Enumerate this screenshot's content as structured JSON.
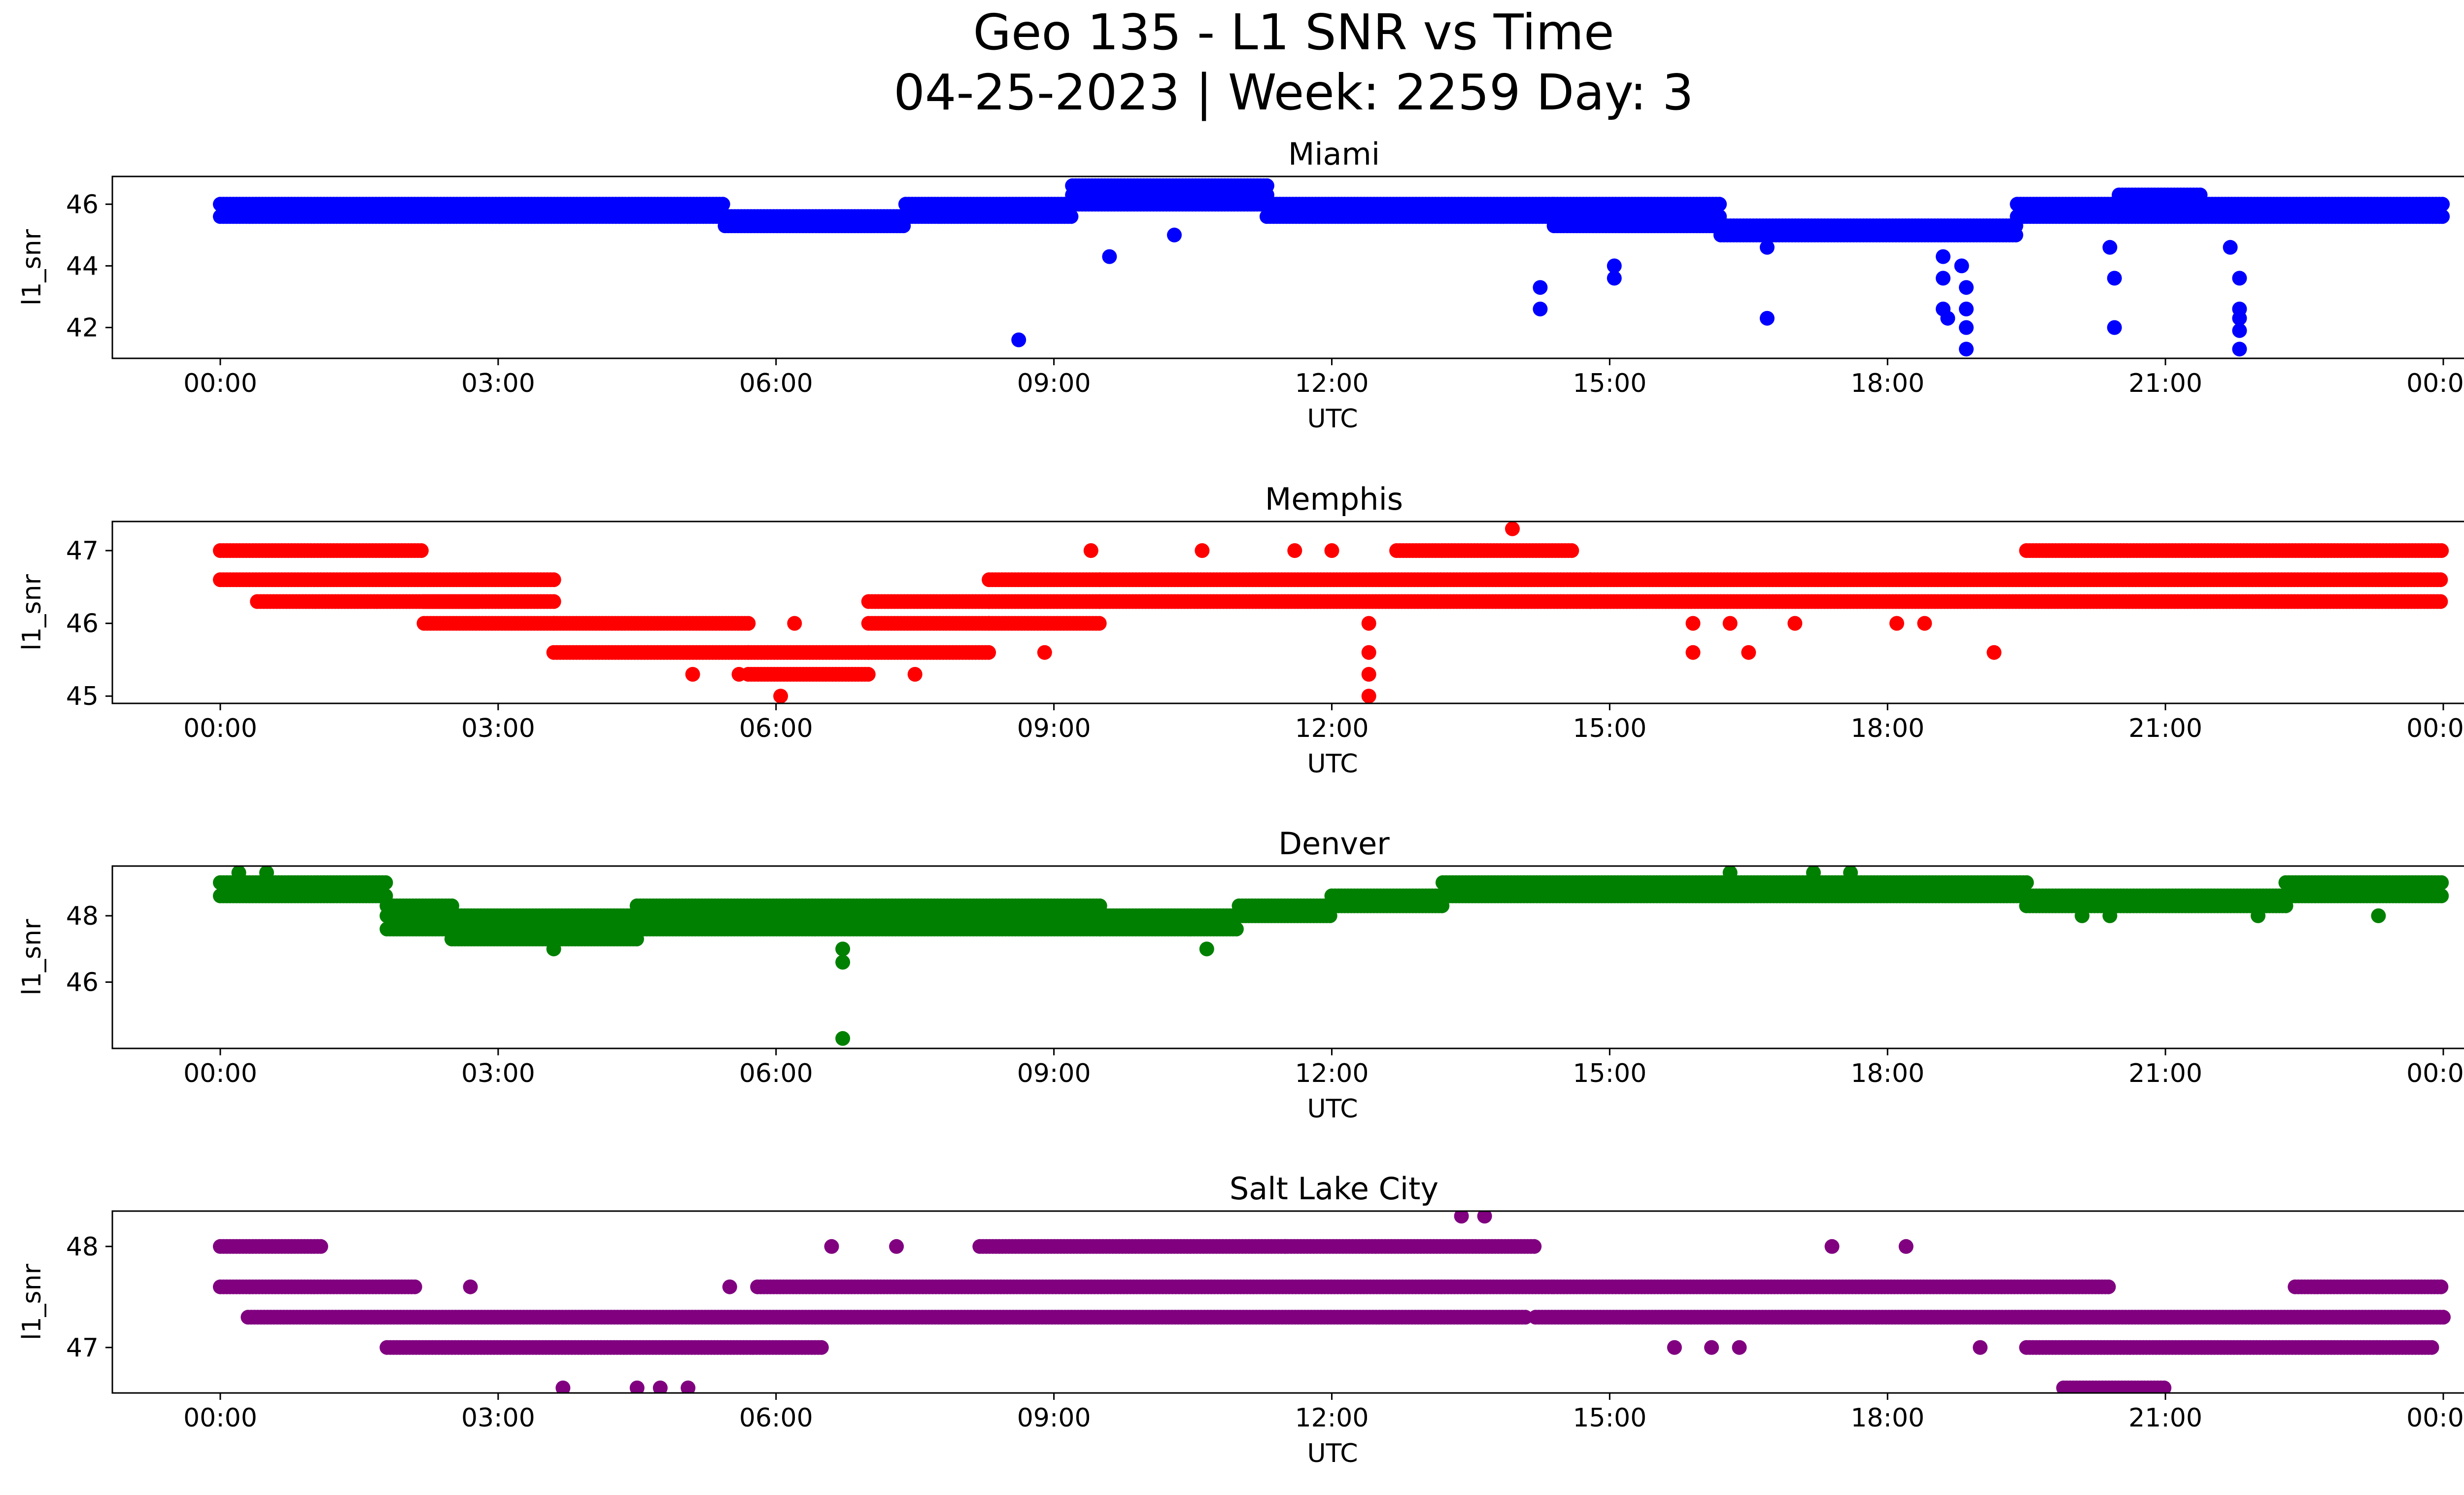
{
  "figure": {
    "title_line1": "Geo 135 - L1 SNR vs Time",
    "title_line2": "04-25-2023 | Week: 2259 Day: 3"
  },
  "chart_data": [
    {
      "type": "scatter",
      "title": "Miami",
      "xlabel": "UTC",
      "ylabel": "l1_snr",
      "color": "#0000ff",
      "xlim": [
        "00:00",
        "24:00"
      ],
      "xticks": [
        "00:00",
        "03:00",
        "06:00",
        "09:00",
        "12:00",
        "15:00",
        "18:00",
        "21:00",
        "00:00"
      ],
      "ylim": [
        41.0,
        46.9
      ],
      "yticks": [
        42,
        44,
        46
      ],
      "bands": [
        {
          "x": [
            0.0,
            5.45
          ],
          "ys": [
            45.6,
            46.0
          ]
        },
        {
          "x": [
            5.45,
            7.4
          ],
          "ys": [
            45.3,
            45.6
          ]
        },
        {
          "x": [
            7.4,
            9.2
          ],
          "ys": [
            45.6,
            46.0
          ]
        },
        {
          "x": [
            9.2,
            11.3
          ],
          "ys": [
            46.0,
            46.3,
            46.6
          ]
        },
        {
          "x": [
            11.3,
            14.4
          ],
          "ys": [
            45.6,
            46.0
          ]
        },
        {
          "x": [
            14.4,
            16.2
          ],
          "ys": [
            45.3,
            45.6,
            46.0
          ]
        },
        {
          "x": [
            16.2,
            19.4
          ],
          "ys": [
            45.0,
            45.3
          ]
        },
        {
          "x": [
            19.4,
            20.5
          ],
          "ys": [
            45.6,
            46.0
          ]
        },
        {
          "x": [
            20.5,
            21.4
          ],
          "ys": [
            45.6,
            46.0,
            46.3
          ]
        },
        {
          "x": [
            21.4,
            24.0
          ],
          "ys": [
            45.6,
            46.0
          ]
        }
      ],
      "outliers": [
        [
          8.62,
          41.6
        ],
        [
          9.6,
          44.3
        ],
        [
          10.3,
          45.0
        ],
        [
          14.25,
          43.3
        ],
        [
          14.25,
          42.6
        ],
        [
          15.05,
          44.0
        ],
        [
          15.05,
          43.6
        ],
        [
          16.7,
          42.3
        ],
        [
          16.7,
          44.6
        ],
        [
          18.6,
          43.6
        ],
        [
          18.6,
          42.6
        ],
        [
          18.65,
          42.3
        ],
        [
          18.6,
          44.3
        ],
        [
          18.85,
          43.3
        ],
        [
          18.85,
          42.6
        ],
        [
          18.85,
          42.0
        ],
        [
          18.85,
          41.3
        ],
        [
          18.8,
          44.0
        ],
        [
          20.45,
          43.6
        ],
        [
          20.45,
          42.0
        ],
        [
          20.4,
          44.6
        ],
        [
          21.8,
          43.6
        ],
        [
          21.8,
          42.6
        ],
        [
          21.8,
          42.3
        ],
        [
          21.8,
          41.9
        ],
        [
          21.8,
          41.3
        ],
        [
          21.7,
          44.6
        ]
      ]
    },
    {
      "type": "scatter",
      "title": "Memphis",
      "xlabel": "UTC",
      "ylabel": "l1_snr",
      "color": "#ff0000",
      "xlim": [
        "00:00",
        "24:00"
      ],
      "xticks": [
        "00:00",
        "03:00",
        "06:00",
        "09:00",
        "12:00",
        "15:00",
        "18:00",
        "21:00",
        "00:00"
      ],
      "ylim": [
        44.9,
        47.4
      ],
      "yticks": [
        45,
        46,
        47
      ],
      "bands": [
        {
          "x": [
            0.0,
            2.2
          ],
          "ys": [
            46.6,
            47.0
          ]
        },
        {
          "x": [
            0.4,
            2.8
          ],
          "ys": [
            46.3
          ]
        },
        {
          "x": [
            2.2,
            3.6
          ],
          "ys": [
            46.0,
            46.3,
            46.6
          ]
        },
        {
          "x": [
            3.6,
            5.7
          ],
          "ys": [
            45.6,
            46.0
          ]
        },
        {
          "x": [
            5.7,
            7.0
          ],
          "ys": [
            45.3,
            45.6
          ]
        },
        {
          "x": [
            7.0,
            8.3
          ],
          "ys": [
            45.6,
            46.0,
            46.3
          ]
        },
        {
          "x": [
            8.3,
            9.5
          ],
          "ys": [
            46.0,
            46.3,
            46.6
          ]
        },
        {
          "x": [
            9.5,
            14.8
          ],
          "ys": [
            46.3,
            46.6
          ]
        },
        {
          "x": [
            12.7,
            14.6
          ],
          "ys": [
            47.0
          ]
        },
        {
          "x": [
            14.8,
            24.0
          ],
          "ys": [
            46.3,
            46.6
          ]
        },
        {
          "x": [
            19.5,
            24.0
          ],
          "ys": [
            47.0
          ]
        }
      ],
      "outliers": [
        [
          6.05,
          45.0
        ],
        [
          12.4,
          45.0
        ],
        [
          12.4,
          45.3
        ],
        [
          12.4,
          45.6
        ],
        [
          12.4,
          46.0
        ],
        [
          13.95,
          47.3
        ],
        [
          15.9,
          45.6
        ],
        [
          16.5,
          45.6
        ],
        [
          15.9,
          46.0
        ],
        [
          16.3,
          46.0
        ],
        [
          17.0,
          46.0
        ],
        [
          18.1,
          46.0
        ],
        [
          18.4,
          46.0
        ],
        [
          19.15,
          45.6
        ],
        [
          8.9,
          45.6
        ],
        [
          5.1,
          45.3
        ],
        [
          5.6,
          45.3
        ],
        [
          6.2,
          46.0
        ],
        [
          10.6,
          47.0
        ],
        [
          11.6,
          47.0
        ],
        [
          12.0,
          47.0
        ],
        [
          9.4,
          47.0
        ],
        [
          7.5,
          45.3
        ]
      ]
    },
    {
      "type": "scatter",
      "title": "Denver",
      "xlabel": "UTC",
      "ylabel": "l1_snr",
      "color": "#008000",
      "xlim": [
        "00:00",
        "24:00"
      ],
      "xticks": [
        "00:00",
        "03:00",
        "06:00",
        "09:00",
        "12:00",
        "15:00",
        "18:00",
        "21:00",
        "00:00"
      ],
      "ylim": [
        44.0,
        49.5
      ],
      "yticks": [
        46,
        48
      ],
      "bands": [
        {
          "x": [
            0.0,
            1.8
          ],
          "ys": [
            48.6,
            49.0
          ]
        },
        {
          "x": [
            1.8,
            2.5
          ],
          "ys": [
            47.6,
            48.0,
            48.3
          ]
        },
        {
          "x": [
            2.5,
            4.5
          ],
          "ys": [
            47.3,
            47.6,
            48.0
          ]
        },
        {
          "x": [
            4.5,
            6.8
          ],
          "ys": [
            47.6,
            48.0,
            48.3
          ]
        },
        {
          "x": [
            6.8,
            9.5
          ],
          "ys": [
            47.6,
            48.0,
            48.3
          ]
        },
        {
          "x": [
            9.5,
            11.0
          ],
          "ys": [
            47.6,
            48.0
          ]
        },
        {
          "x": [
            11.0,
            12.0
          ],
          "ys": [
            48.0,
            48.3
          ]
        },
        {
          "x": [
            12.0,
            13.2
          ],
          "ys": [
            48.3,
            48.6
          ]
        },
        {
          "x": [
            13.2,
            19.5
          ],
          "ys": [
            48.6,
            49.0
          ]
        },
        {
          "x": [
            19.5,
            22.3
          ],
          "ys": [
            48.3,
            48.6
          ]
        },
        {
          "x": [
            22.3,
            24.0
          ],
          "ys": [
            48.6,
            49.0
          ]
        }
      ],
      "outliers": [
        [
          6.72,
          44.3
        ],
        [
          6.72,
          46.6
        ],
        [
          6.72,
          47.0
        ],
        [
          10.65,
          47.0
        ],
        [
          3.6,
          47.0
        ],
        [
          0.2,
          49.3
        ],
        [
          0.5,
          49.3
        ],
        [
          16.3,
          49.3
        ],
        [
          17.2,
          49.3
        ],
        [
          17.6,
          49.3
        ],
        [
          22.0,
          48.0
        ],
        [
          23.3,
          48.0
        ],
        [
          20.1,
          48.0
        ],
        [
          20.4,
          48.0
        ]
      ]
    },
    {
      "type": "scatter",
      "title": "Salt Lake City",
      "xlabel": "UTC",
      "ylabel": "l1_snr",
      "color": "#800080",
      "xlim": [
        "00:00",
        "24:00"
      ],
      "xticks": [
        "00:00",
        "03:00",
        "06:00",
        "09:00",
        "12:00",
        "15:00",
        "18:00",
        "21:00",
        "00:00"
      ],
      "ylim": [
        46.55,
        48.35
      ],
      "yticks": [
        47,
        48
      ],
      "bands": [
        {
          "x": [
            0.0,
            2.1
          ],
          "ys": [
            47.6
          ]
        },
        {
          "x": [
            0.0,
            1.1
          ],
          "ys": [
            48.0
          ]
        },
        {
          "x": [
            0.3,
            14.1
          ],
          "ys": [
            47.3
          ]
        },
        {
          "x": [
            1.8,
            6.5
          ],
          "ys": [
            47.0
          ]
        },
        {
          "x": [
            5.8,
            14.4
          ],
          "ys": [
            47.6
          ]
        },
        {
          "x": [
            8.2,
            14.2
          ],
          "ys": [
            48.0
          ]
        },
        {
          "x": [
            14.4,
            20.4
          ],
          "ys": [
            47.6
          ]
        },
        {
          "x": [
            14.2,
            24.0
          ],
          "ys": [
            47.3
          ]
        },
        {
          "x": [
            19.5,
            23.9
          ],
          "ys": [
            47.0
          ]
        },
        {
          "x": [
            22.4,
            24.0
          ],
          "ys": [
            47.6
          ]
        },
        {
          "x": [
            19.9,
            21.0
          ],
          "ys": [
            46.6
          ]
        }
      ],
      "outliers": [
        [
          3.7,
          46.6
        ],
        [
          4.5,
          46.6
        ],
        [
          4.75,
          46.6
        ],
        [
          5.05,
          46.6
        ],
        [
          13.4,
          48.3
        ],
        [
          13.65,
          48.3
        ],
        [
          17.4,
          48.0
        ],
        [
          18.2,
          48.0
        ],
        [
          6.6,
          48.0
        ],
        [
          7.3,
          48.0
        ],
        [
          11.5,
          48.0
        ],
        [
          2.7,
          47.6
        ],
        [
          5.5,
          47.6
        ],
        [
          15.7,
          47.0
        ],
        [
          16.1,
          47.0
        ],
        [
          16.4,
          47.0
        ],
        [
          19.0,
          47.0
        ]
      ]
    }
  ]
}
